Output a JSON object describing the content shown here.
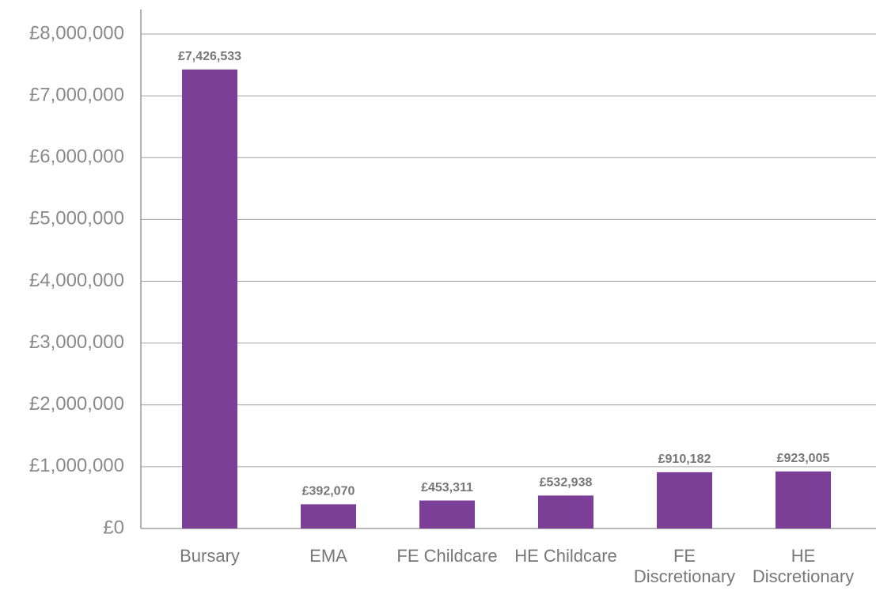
{
  "chart_data": {
    "type": "bar",
    "categories": [
      "Bursary",
      "EMA",
      "FE Childcare",
      "HE Childcare",
      "FE Discretionary",
      "HE Discretionary"
    ],
    "values": [
      7426533,
      392070,
      453311,
      532938,
      910182,
      923005
    ],
    "value_labels": [
      "£7,426,533",
      "£392,070",
      "£453,311",
      "£532,938",
      "£910,182",
      "£923,005"
    ],
    "color": "#7b3f98",
    "ylim": [
      0,
      8000000
    ],
    "yticks": [
      {
        "value": 0,
        "label": "£0"
      },
      {
        "value": 1000000,
        "label": "£1,000,000"
      },
      {
        "value": 2000000,
        "label": "£2,000,000"
      },
      {
        "value": 3000000,
        "label": "£3,000,000"
      },
      {
        "value": 4000000,
        "label": "£4,000,000"
      },
      {
        "value": 5000000,
        "label": "£5,000,000"
      },
      {
        "value": 6000000,
        "label": "£6,000,000"
      },
      {
        "value": 7000000,
        "label": "£7,000,000"
      },
      {
        "value": 8000000,
        "label": "£8,000,000"
      }
    ],
    "grid": true
  }
}
